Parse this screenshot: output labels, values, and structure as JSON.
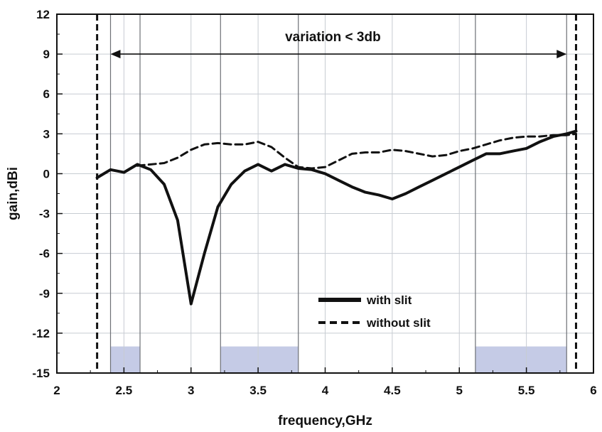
{
  "chart_data": {
    "type": "line",
    "xlabel": "frequency,GHz",
    "ylabel": "gain,dBi",
    "xlim": [
      2,
      6
    ],
    "ylim": [
      -15,
      12
    ],
    "x_ticks": [
      "2",
      "2.5",
      "3",
      "3.5",
      "4",
      "4.5",
      "5",
      "5.5",
      "6"
    ],
    "y_ticks": [
      "12",
      "9",
      "6",
      "3",
      "0",
      "-3",
      "-6",
      "-9",
      "-12",
      "-15"
    ],
    "annotation": {
      "text": "variation < 3db",
      "x_start": 2.4,
      "x_end": 5.8,
      "y": 9
    },
    "band_lines_x": [
      2.4,
      2.62,
      3.22,
      3.8,
      5.12,
      5.8
    ],
    "shaded_bands": [
      {
        "x_start": 2.4,
        "x_end": 2.62,
        "y_start": -15,
        "y_end": -13
      },
      {
        "x_start": 3.22,
        "x_end": 3.8,
        "y_start": -15,
        "y_end": -13
      },
      {
        "x_start": 5.12,
        "x_end": 5.8,
        "y_start": -15,
        "y_end": -13
      }
    ],
    "dashed_vlines_x": [
      2.3,
      5.87
    ],
    "colors": {
      "grid": "#c7ccd2",
      "band_shade": "#c5cbe6",
      "line": "#111111"
    },
    "series": [
      {
        "name": "with slit",
        "style": "solid",
        "x": [
          2.3,
          2.4,
          2.5,
          2.6,
          2.7,
          2.8,
          2.9,
          3.0,
          3.1,
          3.2,
          3.3,
          3.4,
          3.5,
          3.6,
          3.7,
          3.8,
          3.9,
          4.0,
          4.1,
          4.2,
          4.3,
          4.4,
          4.5,
          4.6,
          4.7,
          4.8,
          4.9,
          5.0,
          5.1,
          5.2,
          5.3,
          5.4,
          5.5,
          5.6,
          5.7,
          5.8,
          5.87
        ],
        "y": [
          -0.3,
          0.3,
          0.1,
          0.7,
          0.3,
          -0.8,
          -3.5,
          -9.8,
          -6.0,
          -2.5,
          -0.8,
          0.2,
          0.7,
          0.2,
          0.7,
          0.4,
          0.3,
          0.0,
          -0.5,
          -1.0,
          -1.4,
          -1.6,
          -1.9,
          -1.5,
          -1.0,
          -0.5,
          0.0,
          0.5,
          1.0,
          1.5,
          1.5,
          1.7,
          1.9,
          2.4,
          2.8,
          3.0,
          3.2
        ]
      },
      {
        "name": "without slit",
        "style": "dashed",
        "x": [
          2.6,
          2.7,
          2.8,
          2.9,
          3.0,
          3.1,
          3.2,
          3.3,
          3.4,
          3.5,
          3.6,
          3.7,
          3.8,
          3.9,
          4.0,
          4.1,
          4.2,
          4.3,
          4.4,
          4.5,
          4.6,
          4.7,
          4.8,
          4.9,
          5.0,
          5.1,
          5.2,
          5.3,
          5.4,
          5.5,
          5.6,
          5.7,
          5.8,
          5.87
        ],
        "y": [
          0.6,
          0.7,
          0.8,
          1.2,
          1.8,
          2.2,
          2.3,
          2.2,
          2.2,
          2.4,
          2.0,
          1.2,
          0.5,
          0.4,
          0.5,
          1.0,
          1.5,
          1.6,
          1.6,
          1.8,
          1.7,
          1.5,
          1.3,
          1.4,
          1.7,
          1.9,
          2.2,
          2.5,
          2.7,
          2.8,
          2.8,
          2.9,
          2.9,
          3.0
        ]
      }
    ]
  }
}
